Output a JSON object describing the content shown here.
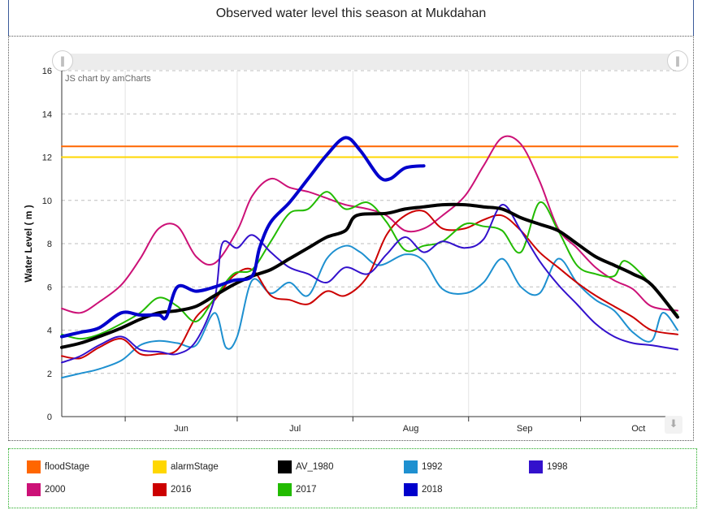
{
  "chart_data": {
    "type": "line",
    "title": "Observed water level this season at Mukdahan",
    "ylabel": "Water Level ( m )",
    "xlabel": "",
    "ylim": [
      0,
      16
    ],
    "yticks": [
      0,
      2,
      4,
      6,
      8,
      10,
      12,
      14,
      16
    ],
    "xlim": [
      "2018-05-15",
      "2018-10-27"
    ],
    "xticks": [
      {
        "label": "Jun",
        "date": "2018-06-01"
      },
      {
        "label": "Jul",
        "date": "2018-07-01"
      },
      {
        "label": "Aug",
        "date": "2018-08-01"
      },
      {
        "label": "Sep",
        "date": "2018-09-01"
      },
      {
        "label": "Oct",
        "date": "2018-10-01"
      }
    ],
    "grid": true,
    "legend_position": "bottom",
    "credit": "JS chart by amCharts",
    "series": [
      {
        "name": "floodStage",
        "color": "#ff6600",
        "width": 2,
        "points": [
          [
            "2018-05-15",
            12.5
          ],
          [
            "2018-10-27",
            12.5
          ]
        ]
      },
      {
        "name": "alarmStage",
        "color": "#ffd700",
        "width": 2,
        "points": [
          [
            "2018-05-15",
            12.0
          ],
          [
            "2018-10-27",
            12.0
          ]
        ]
      },
      {
        "name": "AV_1980",
        "color": "#000000",
        "width": 4,
        "points": [
          [
            "2018-05-15",
            3.2
          ],
          [
            "2018-05-20",
            3.4
          ],
          [
            "2018-05-25",
            3.7
          ],
          [
            "2018-05-31",
            4.1
          ],
          [
            "2018-06-05",
            4.5
          ],
          [
            "2018-06-10",
            4.8
          ],
          [
            "2018-06-15",
            4.9
          ],
          [
            "2018-06-20",
            5.1
          ],
          [
            "2018-06-25",
            5.6
          ],
          [
            "2018-06-30",
            6.1
          ],
          [
            "2018-07-05",
            6.5
          ],
          [
            "2018-07-10",
            6.8
          ],
          [
            "2018-07-15",
            7.3
          ],
          [
            "2018-07-20",
            7.8
          ],
          [
            "2018-07-25",
            8.3
          ],
          [
            "2018-07-30",
            8.6
          ],
          [
            "2018-08-02",
            9.3
          ],
          [
            "2018-08-10",
            9.4
          ],
          [
            "2018-08-15",
            9.6
          ],
          [
            "2018-08-20",
            9.7
          ],
          [
            "2018-08-25",
            9.8
          ],
          [
            "2018-08-31",
            9.8
          ],
          [
            "2018-09-05",
            9.7
          ],
          [
            "2018-09-10",
            9.6
          ],
          [
            "2018-09-15",
            9.2
          ],
          [
            "2018-09-20",
            8.9
          ],
          [
            "2018-09-25",
            8.6
          ],
          [
            "2018-09-30",
            8.0
          ],
          [
            "2018-10-05",
            7.4
          ],
          [
            "2018-10-10",
            7.0
          ],
          [
            "2018-10-15",
            6.6
          ],
          [
            "2018-10-20",
            6.1
          ],
          [
            "2018-10-27",
            4.6
          ]
        ]
      },
      {
        "name": "1992",
        "color": "#1e90d0",
        "width": 2,
        "points": [
          [
            "2018-05-15",
            1.8
          ],
          [
            "2018-05-20",
            2.0
          ],
          [
            "2018-05-25",
            2.2
          ],
          [
            "2018-05-31",
            2.6
          ],
          [
            "2018-06-05",
            3.3
          ],
          [
            "2018-06-10",
            3.5
          ],
          [
            "2018-06-15",
            3.4
          ],
          [
            "2018-06-20",
            3.3
          ],
          [
            "2018-06-25",
            4.8
          ],
          [
            "2018-06-28",
            3.2
          ],
          [
            "2018-07-01",
            3.7
          ],
          [
            "2018-07-05",
            6.3
          ],
          [
            "2018-07-10",
            5.7
          ],
          [
            "2018-07-15",
            6.2
          ],
          [
            "2018-07-20",
            5.6
          ],
          [
            "2018-07-25",
            7.3
          ],
          [
            "2018-07-30",
            7.9
          ],
          [
            "2018-08-03",
            7.6
          ],
          [
            "2018-08-08",
            7.0
          ],
          [
            "2018-08-15",
            7.5
          ],
          [
            "2018-08-20",
            7.2
          ],
          [
            "2018-08-25",
            5.9
          ],
          [
            "2018-08-31",
            5.7
          ],
          [
            "2018-09-05",
            6.2
          ],
          [
            "2018-09-10",
            7.3
          ],
          [
            "2018-09-15",
            6.0
          ],
          [
            "2018-09-20",
            5.7
          ],
          [
            "2018-09-25",
            7.3
          ],
          [
            "2018-09-30",
            6.2
          ],
          [
            "2018-10-05",
            5.4
          ],
          [
            "2018-10-10",
            4.9
          ],
          [
            "2018-10-15",
            3.9
          ],
          [
            "2018-10-20",
            3.5
          ],
          [
            "2018-10-23",
            4.8
          ],
          [
            "2018-10-27",
            4.0
          ]
        ]
      },
      {
        "name": "1998",
        "color": "#3311cc",
        "width": 2,
        "points": [
          [
            "2018-05-15",
            2.5
          ],
          [
            "2018-05-20",
            2.8
          ],
          [
            "2018-05-25",
            3.3
          ],
          [
            "2018-05-31",
            3.7
          ],
          [
            "2018-06-05",
            3.1
          ],
          [
            "2018-06-10",
            3.0
          ],
          [
            "2018-06-15",
            2.9
          ],
          [
            "2018-06-20",
            3.5
          ],
          [
            "2018-06-25",
            5.5
          ],
          [
            "2018-06-27",
            8.0
          ],
          [
            "2018-07-01",
            7.8
          ],
          [
            "2018-07-05",
            8.4
          ],
          [
            "2018-07-10",
            7.6
          ],
          [
            "2018-07-15",
            6.9
          ],
          [
            "2018-07-20",
            6.6
          ],
          [
            "2018-07-25",
            6.2
          ],
          [
            "2018-07-30",
            6.9
          ],
          [
            "2018-08-05",
            6.6
          ],
          [
            "2018-08-10",
            7.5
          ],
          [
            "2018-08-15",
            8.3
          ],
          [
            "2018-08-20",
            7.6
          ],
          [
            "2018-08-25",
            8.1
          ],
          [
            "2018-08-31",
            7.8
          ],
          [
            "2018-09-05",
            8.2
          ],
          [
            "2018-09-10",
            9.8
          ],
          [
            "2018-09-15",
            8.6
          ],
          [
            "2018-09-20",
            7.2
          ],
          [
            "2018-09-25",
            6.1
          ],
          [
            "2018-09-30",
            5.2
          ],
          [
            "2018-10-05",
            4.3
          ],
          [
            "2018-10-10",
            3.7
          ],
          [
            "2018-10-15",
            3.4
          ],
          [
            "2018-10-20",
            3.3
          ],
          [
            "2018-10-27",
            3.1
          ]
        ]
      },
      {
        "name": "2000",
        "color": "#cc1177",
        "width": 2,
        "points": [
          [
            "2018-05-15",
            5.0
          ],
          [
            "2018-05-20",
            4.8
          ],
          [
            "2018-05-25",
            5.3
          ],
          [
            "2018-05-31",
            6.1
          ],
          [
            "2018-06-05",
            7.3
          ],
          [
            "2018-06-10",
            8.7
          ],
          [
            "2018-06-15",
            8.8
          ],
          [
            "2018-06-20",
            7.4
          ],
          [
            "2018-06-25",
            7.1
          ],
          [
            "2018-07-01",
            8.6
          ],
          [
            "2018-07-05",
            10.2
          ],
          [
            "2018-07-10",
            11.0
          ],
          [
            "2018-07-15",
            10.6
          ],
          [
            "2018-07-20",
            10.4
          ],
          [
            "2018-07-25",
            10.1
          ],
          [
            "2018-07-30",
            9.8
          ],
          [
            "2018-08-05",
            9.6
          ],
          [
            "2018-08-10",
            9.3
          ],
          [
            "2018-08-15",
            8.6
          ],
          [
            "2018-08-20",
            8.7
          ],
          [
            "2018-08-25",
            9.3
          ],
          [
            "2018-08-31",
            10.2
          ],
          [
            "2018-09-05",
            11.6
          ],
          [
            "2018-09-10",
            12.9
          ],
          [
            "2018-09-15",
            12.6
          ],
          [
            "2018-09-20",
            10.9
          ],
          [
            "2018-09-25",
            8.7
          ],
          [
            "2018-09-30",
            7.8
          ],
          [
            "2018-10-05",
            6.9
          ],
          [
            "2018-10-10",
            6.3
          ],
          [
            "2018-10-15",
            5.9
          ],
          [
            "2018-10-20",
            5.1
          ],
          [
            "2018-10-27",
            4.9
          ]
        ]
      },
      {
        "name": "2016",
        "color": "#cc0000",
        "width": 2,
        "points": [
          [
            "2018-05-15",
            2.8
          ],
          [
            "2018-05-20",
            2.7
          ],
          [
            "2018-05-25",
            3.2
          ],
          [
            "2018-05-31",
            3.6
          ],
          [
            "2018-06-05",
            2.9
          ],
          [
            "2018-06-10",
            2.9
          ],
          [
            "2018-06-15",
            3.1
          ],
          [
            "2018-06-20",
            4.6
          ],
          [
            "2018-06-25",
            5.4
          ],
          [
            "2018-06-30",
            6.5
          ],
          [
            "2018-07-05",
            6.8
          ],
          [
            "2018-07-10",
            5.6
          ],
          [
            "2018-07-15",
            5.4
          ],
          [
            "2018-07-20",
            5.2
          ],
          [
            "2018-07-25",
            5.8
          ],
          [
            "2018-07-30",
            5.6
          ],
          [
            "2018-08-05",
            6.5
          ],
          [
            "2018-08-10",
            8.4
          ],
          [
            "2018-08-15",
            9.3
          ],
          [
            "2018-08-20",
            9.5
          ],
          [
            "2018-08-25",
            8.7
          ],
          [
            "2018-08-31",
            8.7
          ],
          [
            "2018-09-05",
            9.1
          ],
          [
            "2018-09-10",
            9.3
          ],
          [
            "2018-09-15",
            8.6
          ],
          [
            "2018-09-20",
            7.6
          ],
          [
            "2018-09-25",
            6.9
          ],
          [
            "2018-09-30",
            6.2
          ],
          [
            "2018-10-05",
            5.6
          ],
          [
            "2018-10-10",
            5.1
          ],
          [
            "2018-10-15",
            4.6
          ],
          [
            "2018-10-20",
            4.0
          ],
          [
            "2018-10-27",
            3.8
          ]
        ]
      },
      {
        "name": "2017",
        "color": "#22bb00",
        "width": 2,
        "points": [
          [
            "2018-05-15",
            3.8
          ],
          [
            "2018-05-20",
            3.6
          ],
          [
            "2018-05-25",
            3.8
          ],
          [
            "2018-05-31",
            4.3
          ],
          [
            "2018-06-05",
            4.8
          ],
          [
            "2018-06-10",
            5.5
          ],
          [
            "2018-06-15",
            5.1
          ],
          [
            "2018-06-20",
            4.4
          ],
          [
            "2018-06-25",
            5.5
          ],
          [
            "2018-06-30",
            6.6
          ],
          [
            "2018-07-05",
            6.8
          ],
          [
            "2018-07-10",
            8.1
          ],
          [
            "2018-07-15",
            9.4
          ],
          [
            "2018-07-20",
            9.6
          ],
          [
            "2018-07-25",
            10.4
          ],
          [
            "2018-07-30",
            9.6
          ],
          [
            "2018-08-05",
            9.9
          ],
          [
            "2018-08-10",
            9.0
          ],
          [
            "2018-08-15",
            7.7
          ],
          [
            "2018-08-20",
            7.9
          ],
          [
            "2018-08-25",
            8.1
          ],
          [
            "2018-08-31",
            8.9
          ],
          [
            "2018-09-05",
            8.8
          ],
          [
            "2018-09-10",
            8.6
          ],
          [
            "2018-09-15",
            7.6
          ],
          [
            "2018-09-20",
            9.9
          ],
          [
            "2018-09-25",
            8.6
          ],
          [
            "2018-09-30",
            7.0
          ],
          [
            "2018-10-05",
            6.6
          ],
          [
            "2018-10-10",
            6.5
          ],
          [
            "2018-10-13",
            7.2
          ],
          [
            "2018-10-20",
            6.1
          ],
          [
            "2018-10-27",
            4.7
          ]
        ]
      },
      {
        "name": "2018",
        "color": "#0000cc",
        "width": 4,
        "points": [
          [
            "2018-05-15",
            3.7
          ],
          [
            "2018-05-20",
            3.9
          ],
          [
            "2018-05-25",
            4.1
          ],
          [
            "2018-05-31",
            4.8
          ],
          [
            "2018-06-05",
            4.7
          ],
          [
            "2018-06-10",
            4.7
          ],
          [
            "2018-06-12",
            4.6
          ],
          [
            "2018-06-15",
            6.0
          ],
          [
            "2018-06-20",
            5.8
          ],
          [
            "2018-06-25",
            6.0
          ],
          [
            "2018-06-30",
            6.3
          ],
          [
            "2018-07-05",
            6.5
          ],
          [
            "2018-07-07",
            7.8
          ],
          [
            "2018-07-10",
            9.0
          ],
          [
            "2018-07-15",
            9.9
          ],
          [
            "2018-07-20",
            11.0
          ],
          [
            "2018-07-25",
            12.1
          ],
          [
            "2018-07-30",
            12.9
          ],
          [
            "2018-08-03",
            12.3
          ],
          [
            "2018-08-08",
            11.1
          ],
          [
            "2018-08-11",
            11.0
          ],
          [
            "2018-08-15",
            11.5
          ],
          [
            "2018-08-20",
            11.6
          ]
        ]
      }
    ]
  }
}
